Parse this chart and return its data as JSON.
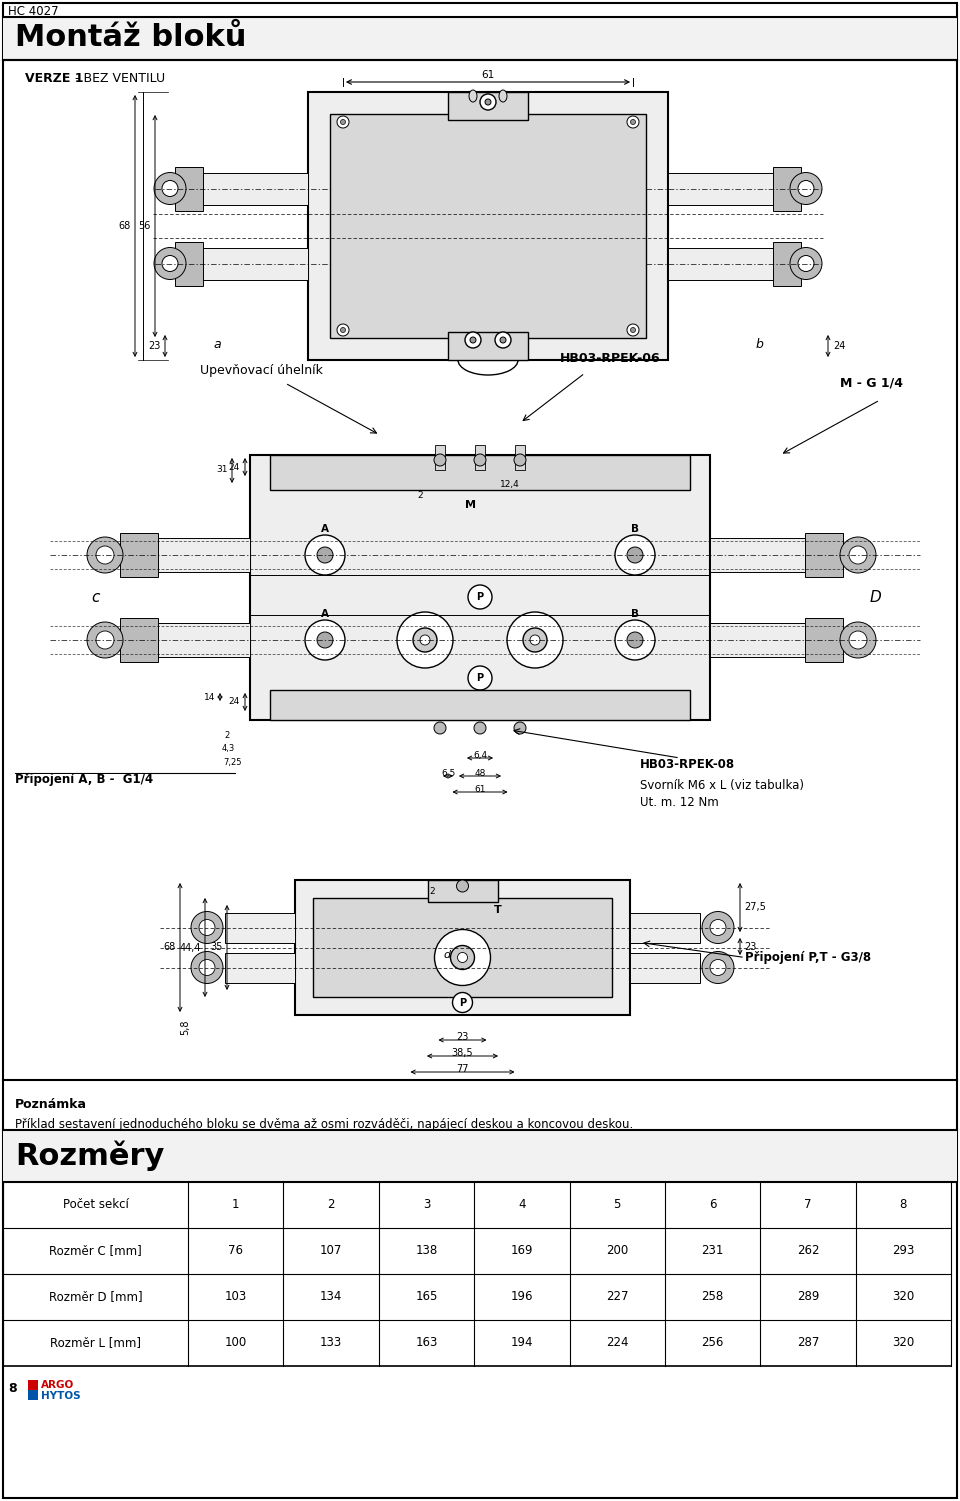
{
  "page_title_small": "HC 4027",
  "page_title_large": "Montáž bloků",
  "version_label": "VERZE 1",
  "version_label2": "- BEZ VENTILU",
  "label_hb03_rpek06": "HB03-RPEK-06",
  "label_mg14": "M - G 1/4",
  "label_upevnovaci": "Upevňovací úhelník",
  "label_pripojeni_ab": "Připojení A, B -  G1/4",
  "label_hb03_rpek08": "HB03-RPEK-08",
  "label_svornik": "Svorník M6 x L (viz tabulka)",
  "label_ut_m": "Ut. m. 12 Nm",
  "label_pripojeni_pt": "Připojení P,T - G3/8",
  "label_poznamka_title": "Poznámka",
  "label_poznamka_text": "Příklad sestavení jednoduchého bloku se dvěma až osmi rozváděči, napájecí deskou a koncovou deskou.",
  "label_rozmery": "Rozměry",
  "table_header": [
    "Počet sekcí",
    "1",
    "2",
    "3",
    "4",
    "5",
    "6",
    "7",
    "8"
  ],
  "table_row1_label": "Rozměr C [mm]",
  "table_row1_values": [
    76,
    107,
    138,
    169,
    200,
    231,
    262,
    293
  ],
  "table_row2_label": "Rozměr D [mm]",
  "table_row2_values": [
    103,
    134,
    165,
    196,
    227,
    258,
    289,
    320
  ],
  "table_row3_label": "Rozměr L [mm]",
  "table_row3_values": [
    100,
    133,
    163,
    194,
    224,
    256,
    287,
    320
  ],
  "page_number": "8",
  "bg_color": "#ffffff",
  "line_color": "#000000",
  "gray_fill": "#d8d8d8",
  "light_gray": "#eeeeee",
  "mid_gray": "#bbbbbb"
}
